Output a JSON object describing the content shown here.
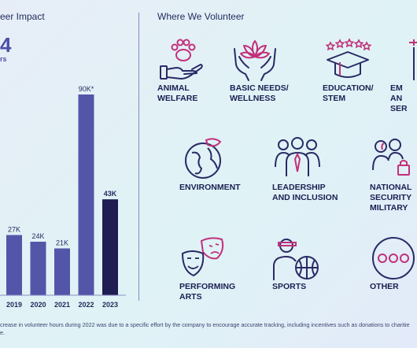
{
  "left_panel": {
    "title": "eer Impact",
    "big_number": "4",
    "big_number_sub": "rs"
  },
  "right_panel": {
    "title": "Where We Volunteer",
    "categories": [
      {
        "label": "ANIMAL\nWELFARE",
        "icon": "paw-hand-icon"
      },
      {
        "label": "BASIC NEEDS/\nWELLNESS",
        "icon": "lotus-hands-icon"
      },
      {
        "label": "EDUCATION/\nSTEM",
        "icon": "graduation-cap-icon"
      },
      {
        "label": "EM\nAN\nSER",
        "icon": "flag-icon"
      },
      {
        "label": "ENVIRONMENT",
        "icon": "globe-leaf-icon"
      },
      {
        "label": "LEADERSHIP\nAND INCLUSION",
        "icon": "group-icon"
      },
      {
        "label": "NATIONAL\nSECURITY\nMILITARY",
        "icon": "shield-people-icon"
      },
      {
        "label": "PERFORMING\nARTS",
        "icon": "theater-masks-icon"
      },
      {
        "label": "SPORTS",
        "icon": "sports-player-icon"
      },
      {
        "label": "OTHER",
        "icon": "dots-circle-icon"
      }
    ]
  },
  "footnote": "crease in volunteer hours during 2022 was due to a specific effort by the company to encourage accurate tracking, including incentives such as donations to charitie",
  "footnote2": "e.",
  "colors": {
    "bar": "#5356a8",
    "bar_highlight": "#1f1d52",
    "accent": "#c2307a",
    "navy": "#2a2a66"
  },
  "chart_data": {
    "type": "bar",
    "title": "",
    "xlabel": "",
    "ylabel": "",
    "categories": [
      "2019",
      "2020",
      "2021",
      "2022",
      "2023"
    ],
    "values": [
      27,
      24,
      21,
      90,
      43
    ],
    "value_labels": [
      "27K",
      "24K",
      "21K",
      "90K*",
      "43K"
    ],
    "highlight": "2023",
    "ylim": [
      0,
      90
    ],
    "grid": false
  }
}
